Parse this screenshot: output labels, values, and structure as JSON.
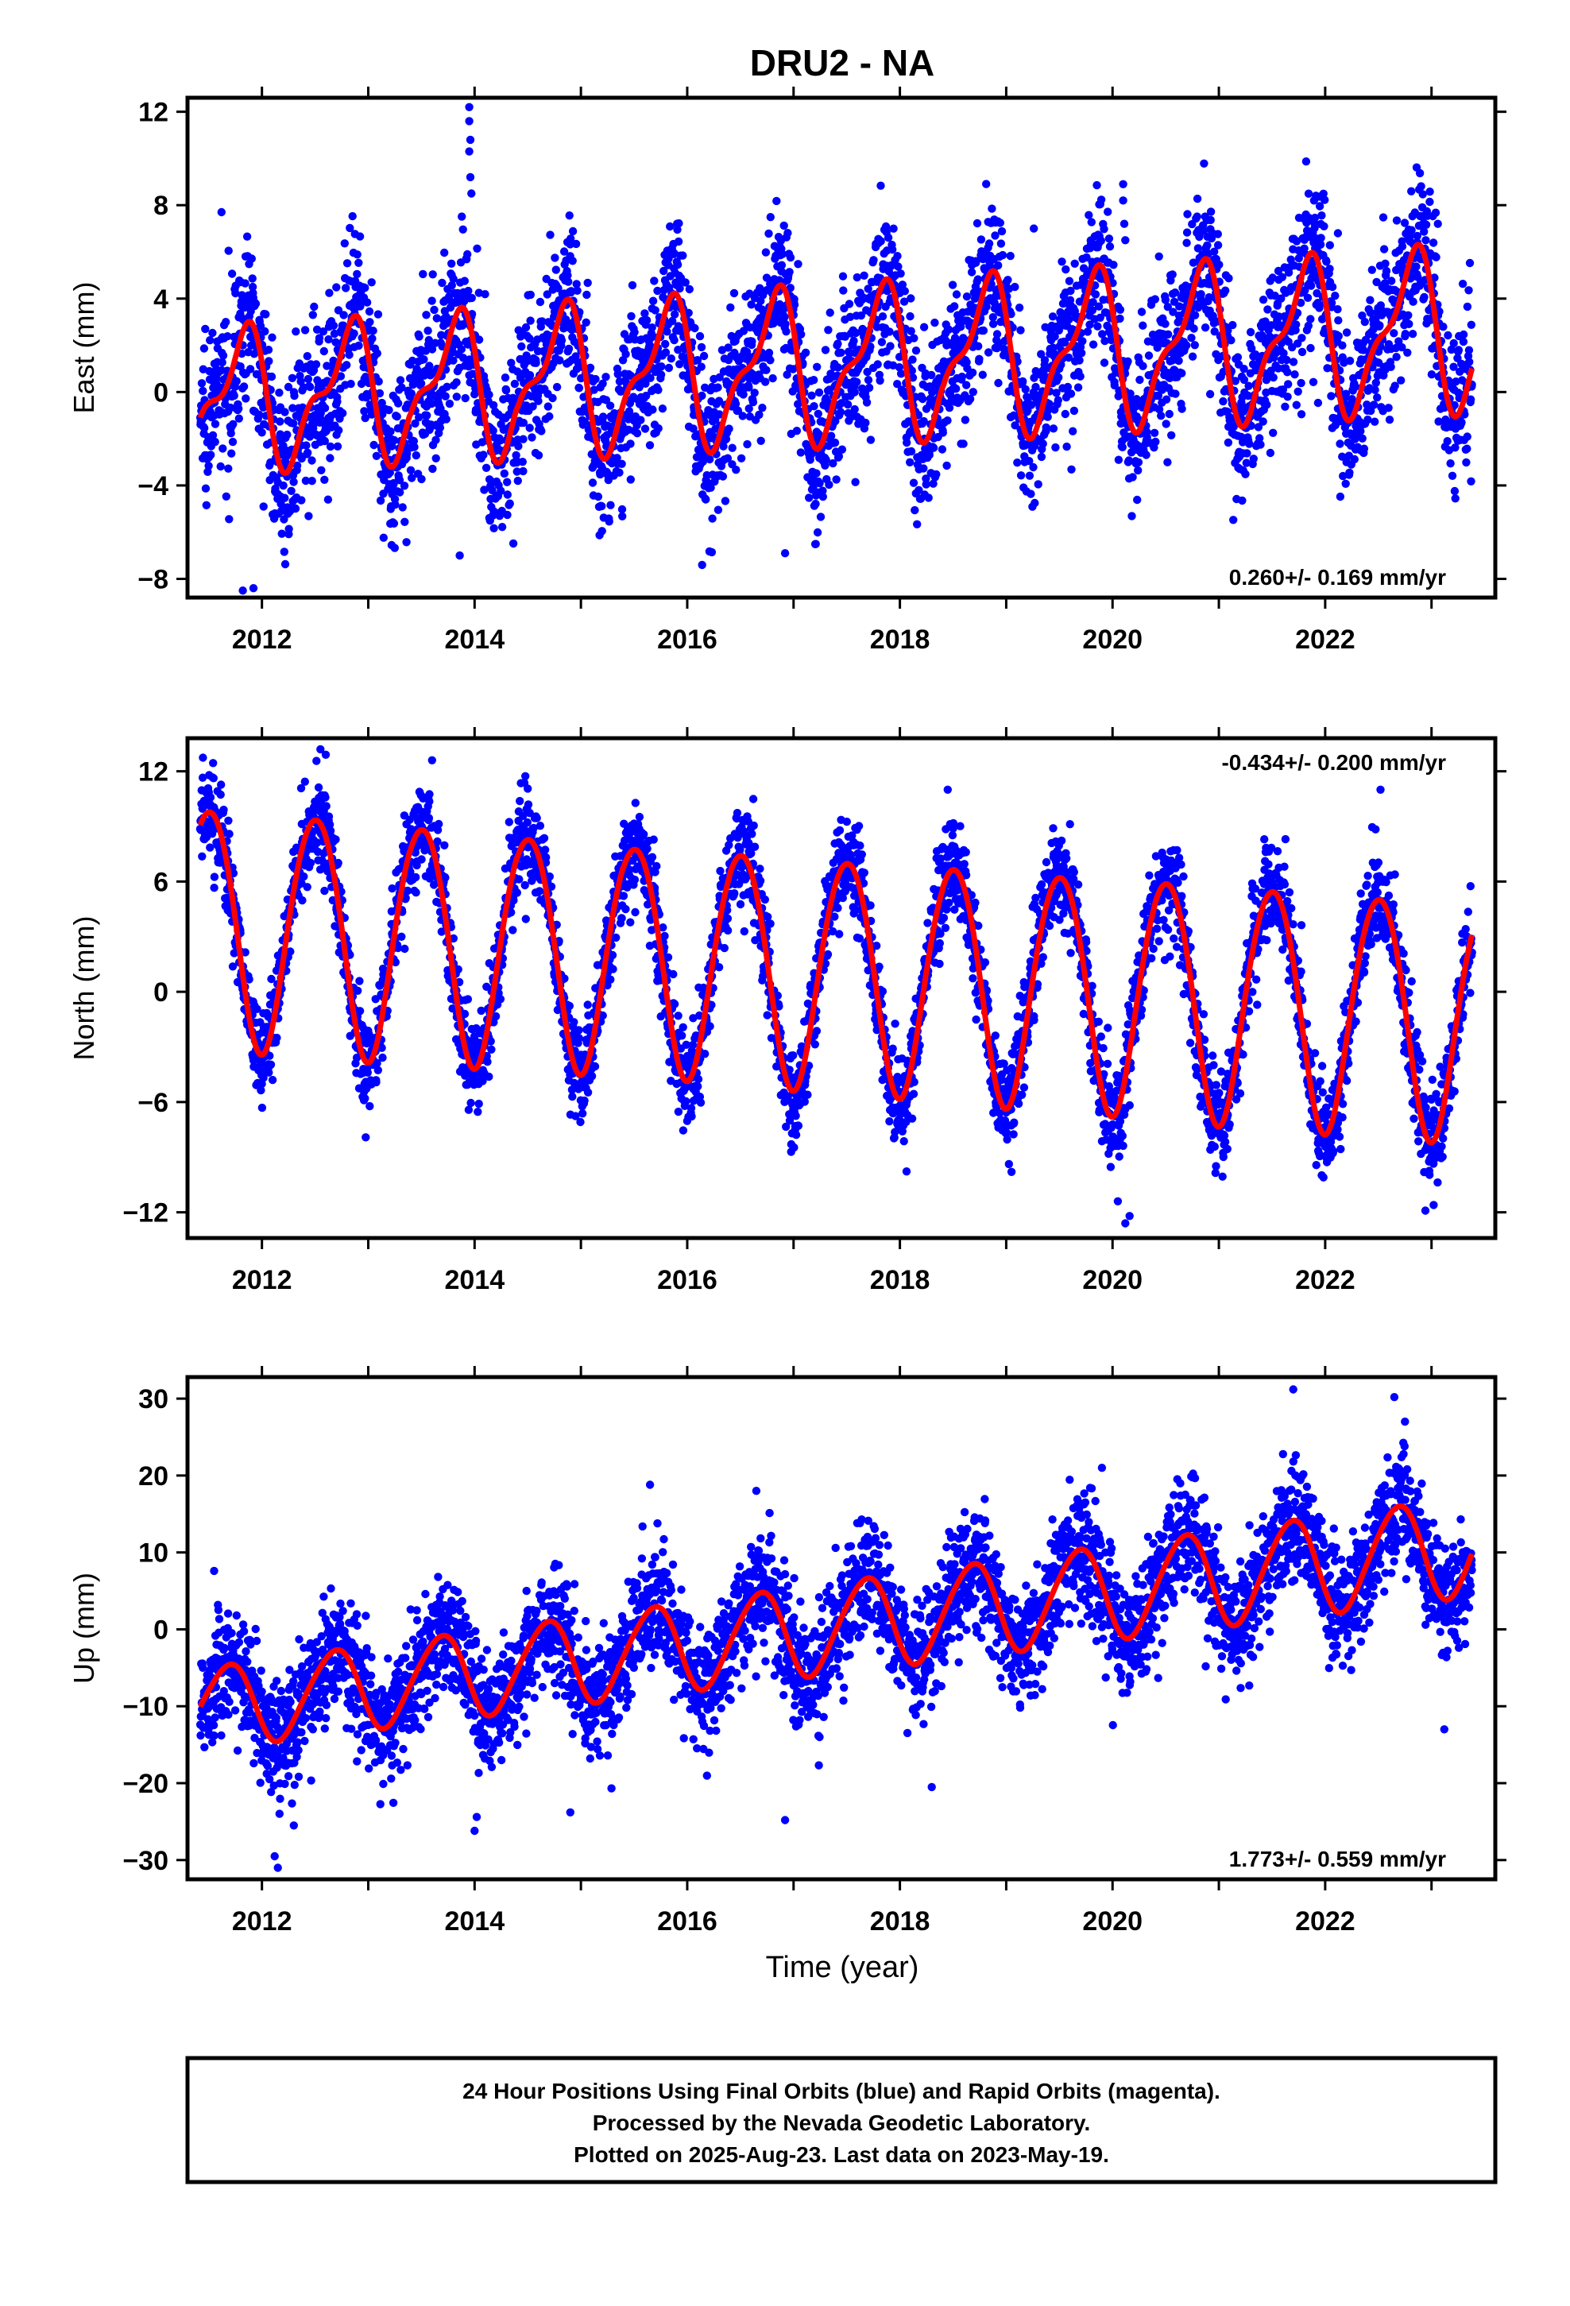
{
  "figure": {
    "title": "DRU2 - NA",
    "xlabel": "Time (year)",
    "footer": [
      "24 Hour Positions Using Final Orbits (blue) and Rapid Orbits (magenta).",
      "Processed by the Nevada Geodetic Laboratory.",
      "Plotted on 2025-Aug-23. Last data on 2023-May-19."
    ],
    "colors": {
      "data": "#0000ff",
      "model": "#ff0000",
      "frame": "#000000"
    }
  },
  "chart_data": [
    {
      "type": "scatter",
      "title": "DRU2 - NA",
      "xlabel": "",
      "ylabel": "East (mm)",
      "xlim": [
        2011.3,
        2023.6
      ],
      "ylim": [
        -8.8,
        12.6
      ],
      "x_ticks": [
        2012,
        2014,
        2016,
        2018,
        2020,
        2022
      ],
      "y_ticks": [
        -8,
        -4,
        0,
        4,
        8,
        12
      ],
      "rate_label": "0.260+/- 0.169 mm/yr",
      "rate_position": "bottom-right",
      "data_span": [
        2011.42,
        2023.38
      ],
      "series": [
        {
          "name": "Final Orbits",
          "kind": "points",
          "model": {
            "intercept": -0.4,
            "ref_year": 2011.4,
            "trend": 0.26,
            "annual_amp": [
              2.6,
              2.6,
              2.7,
              2.8,
              2.8,
              2.9,
              2.9,
              3.0,
              3.0,
              3.0,
              3.0,
              3.1
            ],
            "annual_phase": 0.55,
            "semiannual_amp": 1.2,
            "semiannual_phase": 0.3,
            "scatter_sd": 1.7
          }
        },
        {
          "name": "Model",
          "kind": "line",
          "source": "model"
        }
      ],
      "outliers": [
        {
          "x": 2013.95,
          "y": 12.2
        },
        {
          "x": 2013.95,
          "y": 11.6
        },
        {
          "x": 2013.96,
          "y": 10.8
        },
        {
          "x": 2013.95,
          "y": 10.3
        },
        {
          "x": 2013.96,
          "y": 9.2
        },
        {
          "x": 2013.97,
          "y": 8.5
        },
        {
          "x": 2020.1,
          "y": 8.9
        },
        {
          "x": 2020.1,
          "y": 8.2
        },
        {
          "x": 2020.11,
          "y": 7.2
        },
        {
          "x": 2020.12,
          "y": 6.5
        },
        {
          "x": 2011.62,
          "y": 7.7
        },
        {
          "x": 2011.82,
          "y": -8.5
        },
        {
          "x": 2011.92,
          "y": -8.4
        },
        {
          "x": 2013.86,
          "y": -7.0
        },
        {
          "x": 2016.14,
          "y": -7.4
        },
        {
          "x": 2016.92,
          "y": -6.9
        },
        {
          "x": 2019.26,
          "y": 7.0
        },
        {
          "x": 2022.12,
          "y": 6.8
        },
        {
          "x": 2023.06,
          "y": 7.2
        },
        {
          "x": 2017.88,
          "y": 5.4
        }
      ]
    },
    {
      "type": "scatter",
      "title": "",
      "xlabel": "",
      "ylabel": "North (mm)",
      "xlim": [
        2011.3,
        2023.6
      ],
      "ylim": [
        -13.4,
        13.8
      ],
      "x_ticks": [
        2012,
        2014,
        2016,
        2018,
        2020,
        2022
      ],
      "y_ticks": [
        -12,
        -6,
        0,
        6,
        12
      ],
      "rate_label": "-0.434+/- 0.200 mm/yr",
      "rate_position": "top-right",
      "data_span": [
        2011.42,
        2023.38
      ],
      "series": [
        {
          "name": "Final Orbits",
          "kind": "points",
          "model": {
            "intercept": 3.7,
            "ref_year": 2011.4,
            "trend": -0.434,
            "annual_amp": [
              6.5,
              6.5,
              6.4,
              6.3,
              6.2,
              6.3,
              6.3,
              6.4,
              6.4,
              6.5,
              6.5,
              6.5
            ],
            "annual_phase": 0.25,
            "semiannual_amp": 0.4,
            "semiannual_phase": 0.1,
            "scatter_sd": 1.3
          }
        },
        {
          "name": "Model",
          "kind": "line",
          "source": "model"
        }
      ],
      "outliers": [
        {
          "x": 2012.55,
          "y": 13.2
        },
        {
          "x": 2012.6,
          "y": 12.9
        },
        {
          "x": 2012.1,
          "y": -4.8
        },
        {
          "x": 2012.96,
          "y": -5.9
        },
        {
          "x": 2019.05,
          "y": -9.8
        },
        {
          "x": 2020.12,
          "y": -12.6
        },
        {
          "x": 2020.16,
          "y": -12.2
        },
        {
          "x": 2020.05,
          "y": -11.4
        },
        {
          "x": 2023.02,
          "y": -11.6
        },
        {
          "x": 2022.52,
          "y": 11.0
        },
        {
          "x": 2018.45,
          "y": 11.0
        },
        {
          "x": 2013.6,
          "y": 12.6
        }
      ]
    },
    {
      "type": "scatter",
      "title": "",
      "xlabel": "Time (year)",
      "ylabel": "Up (mm)",
      "xlim": [
        2011.3,
        2023.6
      ],
      "ylim": [
        -32.5,
        32.8
      ],
      "x_ticks": [
        2012,
        2014,
        2016,
        2018,
        2020,
        2022
      ],
      "y_ticks": [
        -30,
        -20,
        -10,
        0,
        10,
        20,
        30
      ],
      "rate_label": "1.773+/- 0.559 mm/yr",
      "rate_position": "bottom-right",
      "data_span": [
        2011.42,
        2023.38
      ],
      "series": [
        {
          "name": "Final Orbits",
          "kind": "points",
          "model": {
            "intercept": -10.3,
            "ref_year": 2011.4,
            "trend": 1.773,
            "annual_amp": [
              5.3,
              5.4,
              5.5,
              5.6,
              5.7,
              5.8,
              5.9,
              6.0,
              6.1,
              6.2,
              6.3,
              6.4
            ],
            "annual_phase": 0.42,
            "semiannual_amp": 0.6,
            "semiannual_phase": 0.2,
            "scatter_sd": 3.8
          }
        },
        {
          "name": "Model",
          "kind": "line",
          "source": "model"
        }
      ],
      "outliers": [
        {
          "x": 2012.15,
          "y": -31.0
        },
        {
          "x": 2012.12,
          "y": -29.5
        },
        {
          "x": 2014.0,
          "y": -26.2
        },
        {
          "x": 2014.02,
          "y": -24.4
        },
        {
          "x": 2012.3,
          "y": -25.5
        },
        {
          "x": 2016.92,
          "y": -24.8
        },
        {
          "x": 2014.9,
          "y": -23.8
        },
        {
          "x": 2021.7,
          "y": 31.2
        },
        {
          "x": 2022.65,
          "y": 30.2
        },
        {
          "x": 2022.75,
          "y": 27.0
        },
        {
          "x": 2018.3,
          "y": -20.5
        },
        {
          "x": 2023.12,
          "y": -13.0
        },
        {
          "x": 2015.65,
          "y": 18.8
        },
        {
          "x": 2016.65,
          "y": 18.0
        },
        {
          "x": 2019.9,
          "y": 21.0
        },
        {
          "x": 2011.55,
          "y": 7.6
        }
      ]
    }
  ]
}
